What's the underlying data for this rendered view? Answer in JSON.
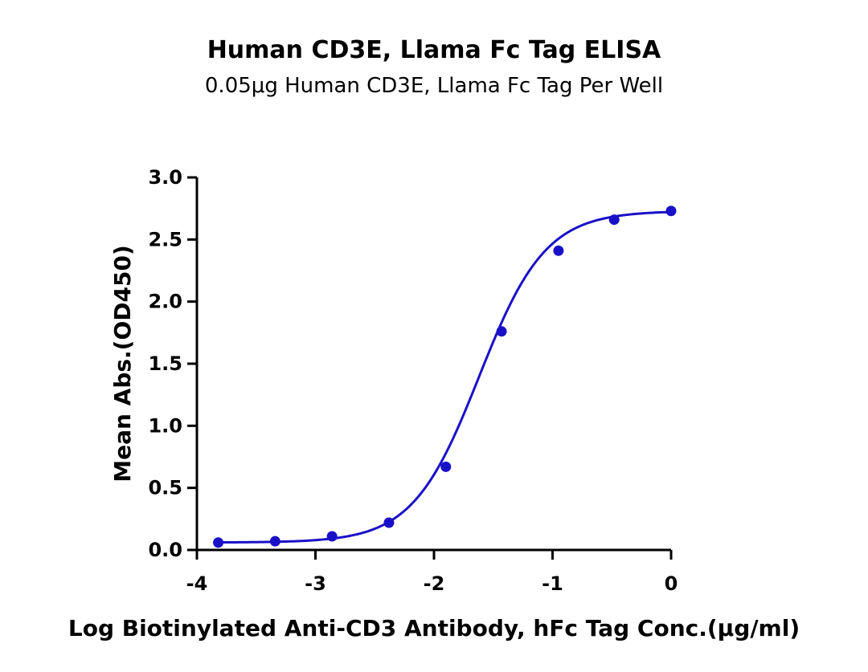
{
  "chart_data": {
    "type": "scatter",
    "title": "Human CD3E, Llama Fc Tag ELISA",
    "subtitle": "0.05μg Human CD3E, Llama Fc Tag Per Well",
    "xlabel": "Log Biotinylated Anti-CD3 Antibody, hFc Tag Conc.(μg/ml)",
    "ylabel": "Mean Abs.(OD450)",
    "xlim": [
      -4,
      0
    ],
    "ylim": [
      0,
      3
    ],
    "x_ticks": [
      -4,
      -3,
      -2,
      -1,
      0
    ],
    "x_tick_labels": [
      "-4",
      "-3",
      "-2",
      "-1",
      "0"
    ],
    "y_ticks": [
      0,
      0.5,
      1,
      1.5,
      2,
      2.5,
      3
    ],
    "y_tick_labels": [
      "0.0",
      "0.5",
      "1.0",
      "1.5",
      "2.0",
      "2.5",
      "3.0"
    ],
    "grid": false,
    "legend": "none",
    "series": [
      {
        "x": [
          -3.82,
          -3.34,
          -2.86,
          -2.38,
          -1.9,
          -1.43,
          -0.95,
          -0.48,
          0.0
        ],
        "y": [
          0.06,
          0.07,
          0.11,
          0.22,
          0.67,
          1.76,
          2.41,
          2.66,
          2.73
        ],
        "color": "#1a10c8",
        "marker": "circle",
        "fit": "4PL sigmoid curve"
      }
    ]
  }
}
